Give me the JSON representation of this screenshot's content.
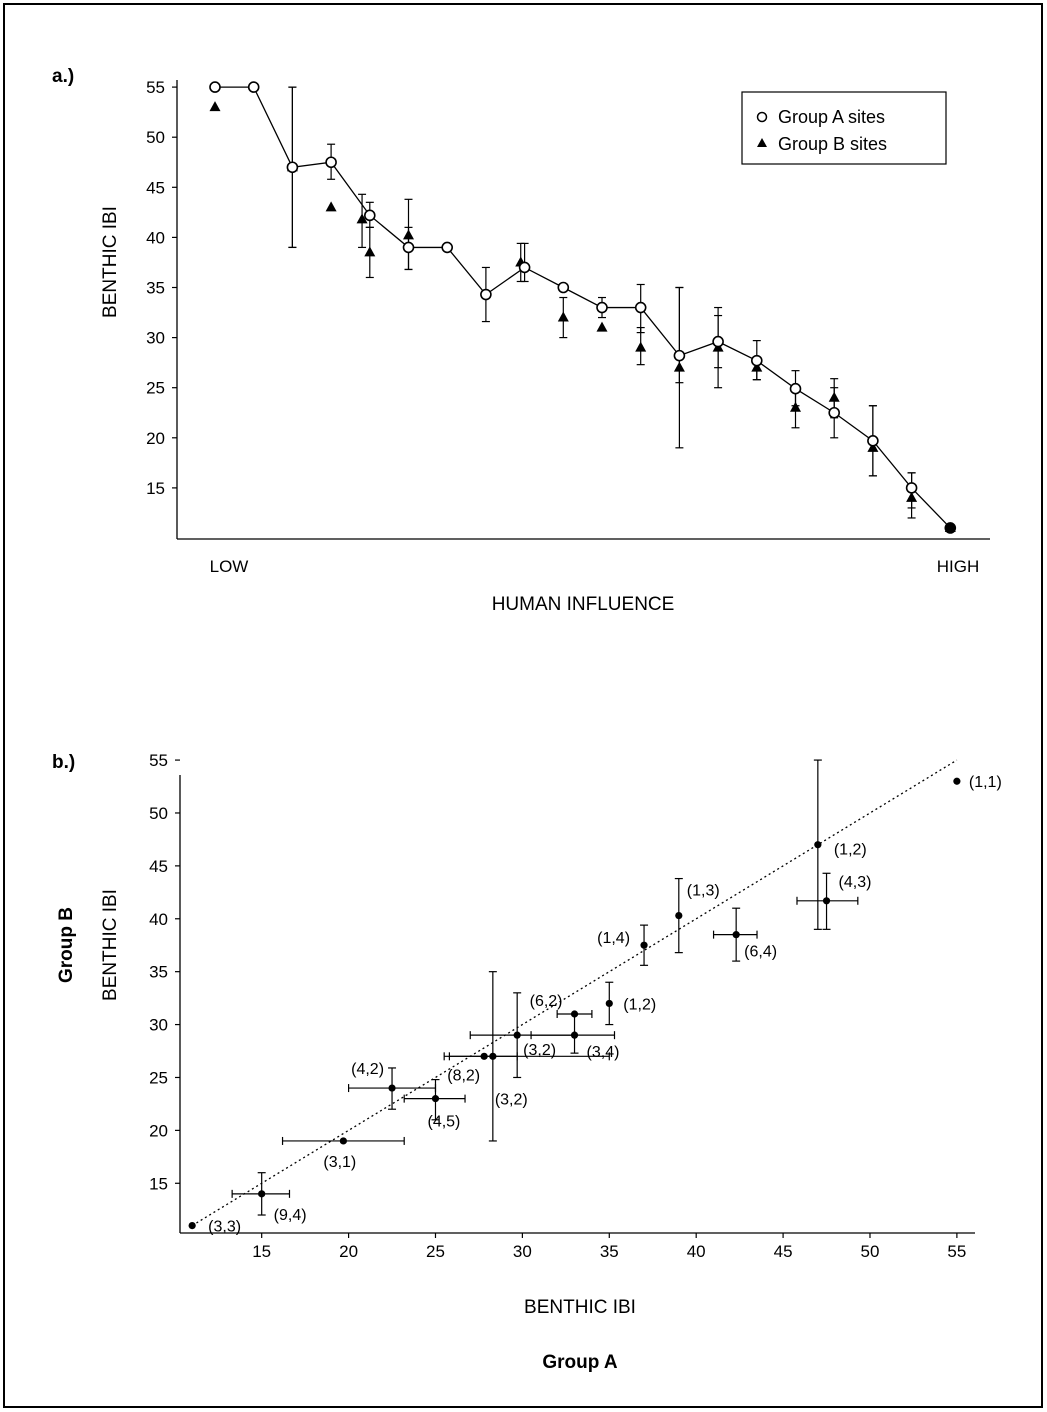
{
  "chart_data": [
    {
      "panel_label": "a.)",
      "type": "line",
      "ylabel": "BENTHIC IBI",
      "xlabel": "HUMAN INFLUENCE",
      "x_tick_labels": {
        "low": "LOW",
        "high": "HIGH"
      },
      "ylim": [
        10,
        55
      ],
      "yticks": [
        15,
        20,
        25,
        30,
        35,
        40,
        45,
        50,
        55
      ],
      "x_positions": 21,
      "legend": {
        "position": "top-right",
        "entries": [
          "Group A sites",
          "Group B sites"
        ]
      },
      "series": [
        {
          "name": "Group A sites",
          "marker": "open-circle",
          "connected": true,
          "x": [
            1,
            2,
            3,
            4,
            5,
            6,
            7,
            8,
            9,
            10,
            11,
            12,
            13,
            14,
            15,
            16,
            17,
            18,
            19,
            20,
            21
          ],
          "y": [
            55,
            55,
            47,
            47.5,
            42.2,
            39,
            39,
            34.3,
            37,
            35,
            33,
            33,
            28.2,
            29.6,
            27.7,
            24.9,
            22.5,
            19.7,
            15,
            11,
            null
          ],
          "err_low": [
            null,
            null,
            39,
            45.8,
            41,
            36.8,
            null,
            31.6,
            35.6,
            null,
            32,
            30.5,
            25.5,
            27,
            25.8,
            23.2,
            20,
            16.2,
            13,
            null,
            null
          ],
          "err_high": [
            null,
            null,
            55,
            49.3,
            43.5,
            41,
            null,
            37,
            39.4,
            null,
            34,
            35.3,
            35,
            33,
            29.7,
            26.7,
            25,
            23.2,
            16.5,
            null,
            null
          ]
        },
        {
          "name": "Group B sites",
          "marker": "filled-triangle",
          "connected": false,
          "x": [
            1,
            3,
            4,
            4.8,
            5,
            6,
            8.9,
            10,
            11,
            12,
            13,
            14,
            15,
            16,
            17,
            18,
            19,
            20
          ],
          "y": [
            53,
            47,
            43,
            41.8,
            38.5,
            40.2,
            37.5,
            32,
            31,
            29,
            27,
            29,
            27,
            23,
            24,
            19,
            14,
            11
          ],
          "err_low": [
            null,
            39,
            null,
            39,
            36,
            36.8,
            35.6,
            30,
            null,
            27.3,
            19,
            25,
            25.8,
            21,
            22,
            16.2,
            12,
            null
          ],
          "err_high": [
            null,
            55,
            null,
            44.3,
            41,
            43.8,
            39.4,
            34,
            null,
            31,
            35,
            32.2,
            28,
            24.8,
            25.9,
            23.2,
            16.5,
            null
          ]
        }
      ]
    },
    {
      "panel_label": "b.)",
      "type": "scatter",
      "xlabel": "BENTHIC IBI",
      "xlabel_group": "Group A",
      "ylabel": "BENTHIC IBI",
      "ylabel_group": "Group B",
      "xlim": [
        10,
        56
      ],
      "ylim": [
        10,
        56
      ],
      "xticks": [
        15,
        20,
        25,
        30,
        35,
        40,
        45,
        50,
        55
      ],
      "yticks": [
        15,
        20,
        25,
        30,
        35,
        40,
        45,
        50,
        55
      ],
      "reference_line": "dotted 1:1",
      "points": [
        {
          "x": 55,
          "y": 53,
          "label": "(1,1)",
          "xerr": null,
          "yerr": null
        },
        {
          "x": 47,
          "y": 47,
          "label": "(1,2)",
          "xerr": null,
          "yerr": [
            39,
            55
          ]
        },
        {
          "x": 47.5,
          "y": 41.7,
          "label": "(4,3)",
          "xerr": [
            45.8,
            49.3
          ],
          "yerr": [
            39,
            44.3
          ]
        },
        {
          "x": 39,
          "y": 40.3,
          "label": "(1,3)",
          "xerr": null,
          "yerr": [
            36.8,
            43.8
          ]
        },
        {
          "x": 42.3,
          "y": 38.5,
          "label": "(6,4)",
          "xerr": [
            41,
            43.5
          ],
          "yerr": [
            36,
            41
          ]
        },
        {
          "x": 37,
          "y": 37.5,
          "label": "(1,4)",
          "xerr": null,
          "yerr": [
            35.6,
            39.4
          ]
        },
        {
          "x": 35,
          "y": 32,
          "label": "(1,2)",
          "xerr": null,
          "yerr": [
            30,
            34
          ]
        },
        {
          "x": 33,
          "y": 31,
          "label": "(6,2)",
          "xerr": [
            32,
            34
          ],
          "yerr": null
        },
        {
          "x": 33,
          "y": 29,
          "label": "(3,4)",
          "xerr": [
            30.5,
            35.3
          ],
          "yerr": [
            27.3,
            31
          ]
        },
        {
          "x": 29.7,
          "y": 29,
          "label": "(3,2)",
          "xerr": [
            27,
            33
          ],
          "yerr": [
            25,
            33
          ]
        },
        {
          "x": 27.8,
          "y": 27,
          "label": "(8,2)",
          "xerr": [
            25.8,
            29.7
          ],
          "yerr": null
        },
        {
          "x": 28.3,
          "y": 27,
          "label": "(3,2)",
          "xerr": [
            25.5,
            35
          ],
          "yerr": [
            19,
            35
          ]
        },
        {
          "x": 22.5,
          "y": 24,
          "label": "(4,2)",
          "xerr": [
            20,
            25
          ],
          "yerr": [
            22,
            25.9
          ]
        },
        {
          "x": 25,
          "y": 23,
          "label": "(4,5)",
          "xerr": [
            23.2,
            26.7
          ],
          "yerr": [
            21,
            24.8
          ]
        },
        {
          "x": 19.7,
          "y": 19,
          "label": "(3,1)",
          "xerr": [
            16.2,
            23.2
          ],
          "yerr": null
        },
        {
          "x": 15,
          "y": 14,
          "label": "(9,4)",
          "xerr": [
            13.3,
            16.6
          ],
          "yerr": [
            12,
            16
          ]
        },
        {
          "x": 11,
          "y": 11,
          "label": "(3,3)",
          "xerr": null,
          "yerr": null
        }
      ]
    }
  ]
}
